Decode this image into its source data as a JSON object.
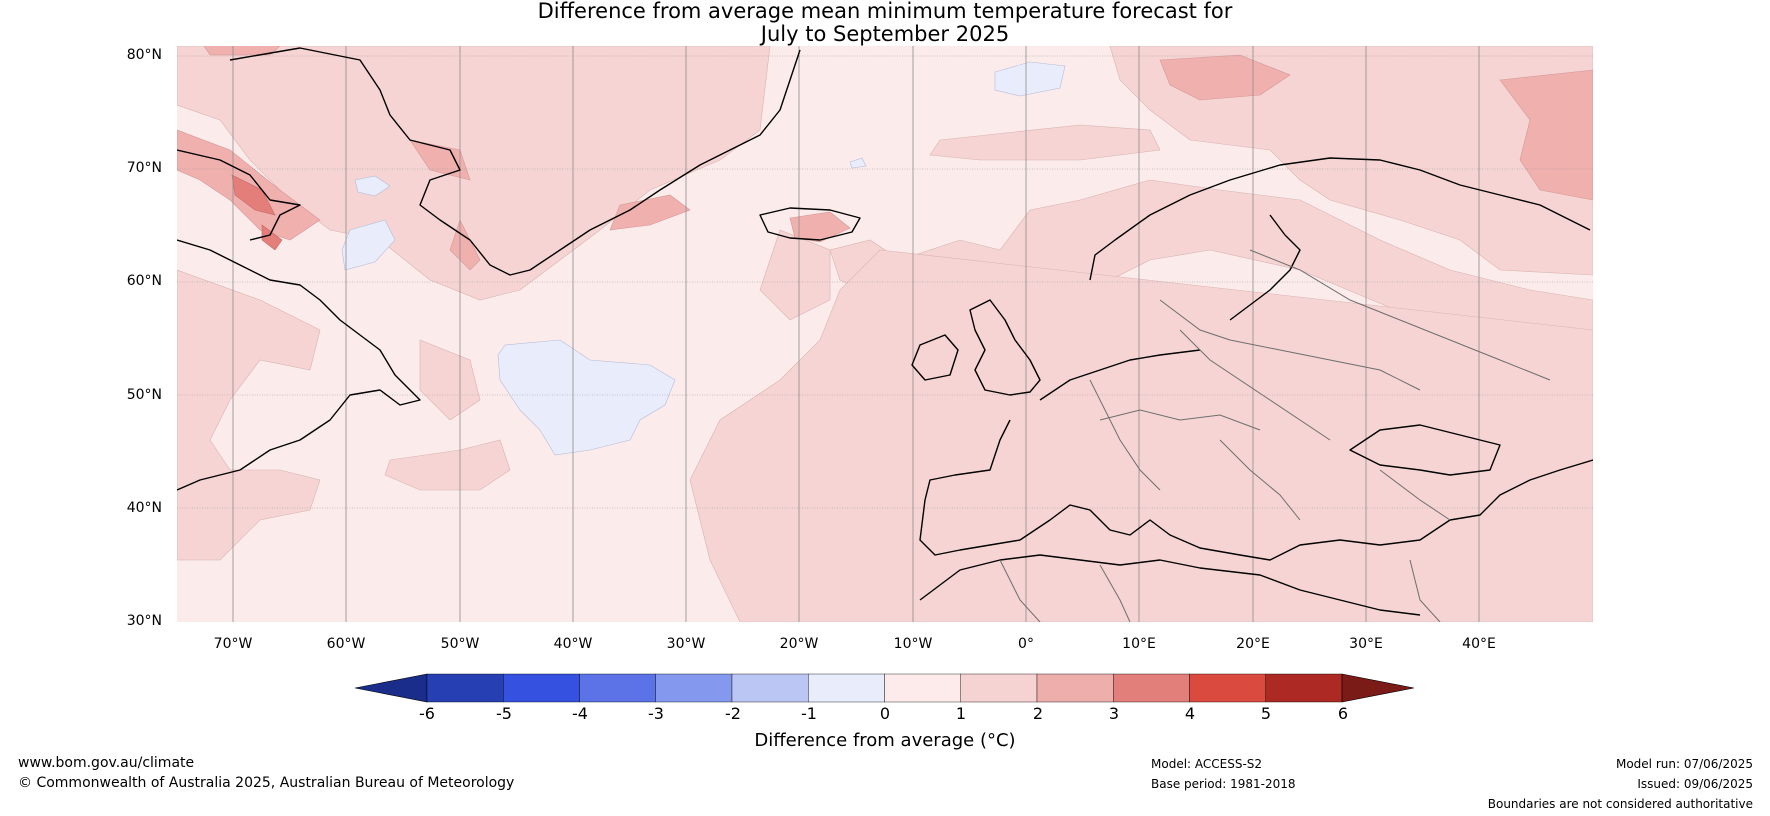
{
  "title": {
    "line1": "Difference from average mean minimum temperature forecast for",
    "line2": "July to September 2025"
  },
  "axes": {
    "lat_labels": [
      "80°N",
      "70°N",
      "60°N",
      "50°N",
      "40°N",
      "30°N"
    ],
    "lon_labels": [
      "70°W",
      "60°W",
      "50°W",
      "40°W",
      "30°W",
      "20°W",
      "10°W",
      "0°",
      "10°E",
      "20°E",
      "30°E",
      "40°E"
    ],
    "lat_range": [
      30,
      80
    ],
    "lon_range": [
      -75,
      50
    ]
  },
  "colorbar": {
    "ticks": [
      "-6",
      "-5",
      "-4",
      "-3",
      "-2",
      "-1",
      "0",
      "1",
      "2",
      "3",
      "4",
      "5",
      "6"
    ],
    "colors": [
      "#1a2d8a",
      "#2640b3",
      "#3451e0",
      "#5c73e8",
      "#8498ee",
      "#bcc6f5",
      "#e8ecfb",
      "#fcebea",
      "#f5d3d2",
      "#eeaeac",
      "#e37f7b",
      "#db4a3f",
      "#ad2a24",
      "#7b1b18"
    ],
    "label": "Difference from average (°C)"
  },
  "footer": {
    "website": "www.bom.gov.au/climate",
    "copyright": "© Commonwealth of Australia 2025, Australian Bureau of Meteorology",
    "model": "Model: ACCESS-S2",
    "base_period": "Base period: 1981-2018",
    "model_run": "Model run: 07/06/2025",
    "issued": "Issued: 09/06/2025",
    "disclaimer": "Boundaries are not considered authoritative"
  }
}
